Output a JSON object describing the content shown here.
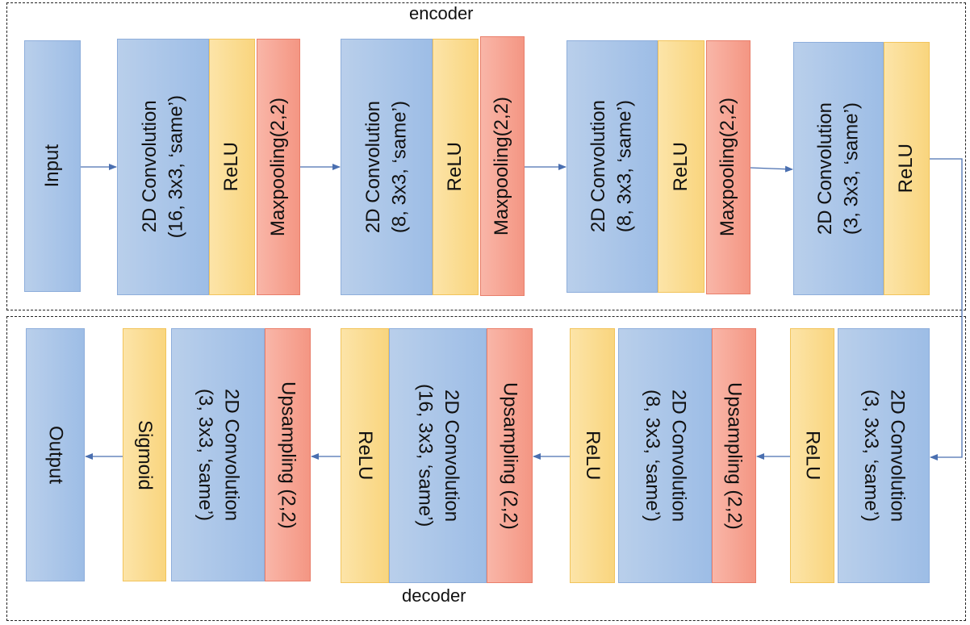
{
  "encoder": {
    "label": "encoder",
    "input": "Input",
    "stage1": {
      "conv": "2D Convolution\n(16, 3x3, ‘same’)",
      "relu": "ReLU",
      "pool": "Maxpooling(2,2)"
    },
    "stage2": {
      "conv": "2D Convolution\n(8, 3x3, ‘same’)",
      "relu": "ReLU",
      "pool": "Maxpooling(2,2)"
    },
    "stage3": {
      "conv": "2D Convolution\n(8, 3x3, ‘same’)",
      "relu": "ReLU",
      "pool": "Maxpooling(2,2)"
    },
    "stage4": {
      "conv": "2D Convolution\n(3, 3x3, ‘same’)",
      "relu": "ReLU"
    }
  },
  "decoder": {
    "label": "decoder",
    "stage1": {
      "conv": "2D Convolution\n(3, 3x3, ‘same’)",
      "relu": "ReLU"
    },
    "stage2": {
      "up": "Upsampling (2,2)",
      "conv": "2D Convolution\n(8, 3x3, ‘same’)",
      "relu": "ReLU"
    },
    "stage3": {
      "up": "Upsampling (2,2)",
      "conv": "2D Convolution\n(16, 3x3, ‘same’)",
      "relu": "ReLU"
    },
    "stage4": {
      "up": "Upsampling (2,2)",
      "conv": "2D Convolution\n(3, 3x3, ‘same’)",
      "sigmoid": "Sigmoid"
    },
    "output": "Output"
  },
  "colors": {
    "conv": "#9dbde6",
    "activation": "#f9d57e",
    "pooling": "#f49683",
    "arrow": "#4a6fb0"
  }
}
